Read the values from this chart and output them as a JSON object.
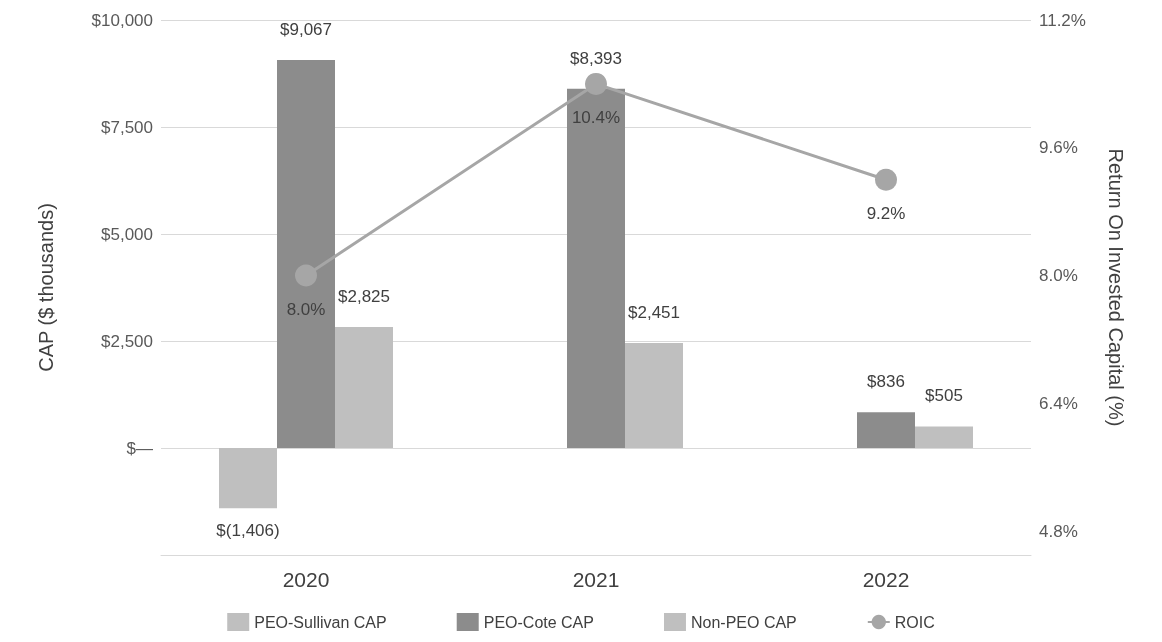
{
  "chart_data": {
    "type": "bar",
    "categories": [
      "2020",
      "2021",
      "2022"
    ],
    "ylabel": "CAP ($ thousands)",
    "y2label": "Return On Invested Capital (%)",
    "series": [
      {
        "name": "PEO-Sullivan CAP",
        "color": "#bfbfbf",
        "values": [
          -1406,
          null,
          null
        ],
        "value_labels": [
          "$(1,406)",
          null,
          null
        ]
      },
      {
        "name": "PEO-Cote CAP",
        "color": "#8c8c8c",
        "values": [
          9067,
          8393,
          836
        ],
        "value_labels": [
          "$9,067",
          "$8,393",
          "$836"
        ]
      },
      {
        "name": "Non-PEO CAP",
        "color": "#bfbfbf",
        "values": [
          2825,
          2451,
          505
        ],
        "value_labels": [
          "$2,825",
          "$2,451",
          "$505"
        ]
      },
      {
        "name": "ROIC",
        "type": "line",
        "axis": "y2",
        "color": "#a6a6a6",
        "marker": "circle",
        "values": [
          8.0,
          10.4,
          9.2
        ],
        "value_labels": [
          "8.0%",
          "10.4%",
          "9.2%"
        ]
      }
    ],
    "ylim": [
      -2500,
      10000
    ],
    "yticks": [
      {
        "value": 0,
        "label": "$—"
      },
      {
        "value": 2500,
        "label": "$2,500"
      },
      {
        "value": 5000,
        "label": "$5,000"
      },
      {
        "value": 7500,
        "label": "$7,500"
      },
      {
        "value": 10000,
        "label": "$10,000"
      }
    ],
    "y2lim": [
      4.5,
      11.2
    ],
    "y2ticks": [
      {
        "value": 4.8,
        "label": "4.8%"
      },
      {
        "value": 6.4,
        "label": "6.4%"
      },
      {
        "value": 8.0,
        "label": "8.0%"
      },
      {
        "value": 9.6,
        "label": "9.6%"
      },
      {
        "value": 11.2,
        "label": "11.2%"
      }
    ],
    "grid": "y",
    "legend": "bottom"
  }
}
